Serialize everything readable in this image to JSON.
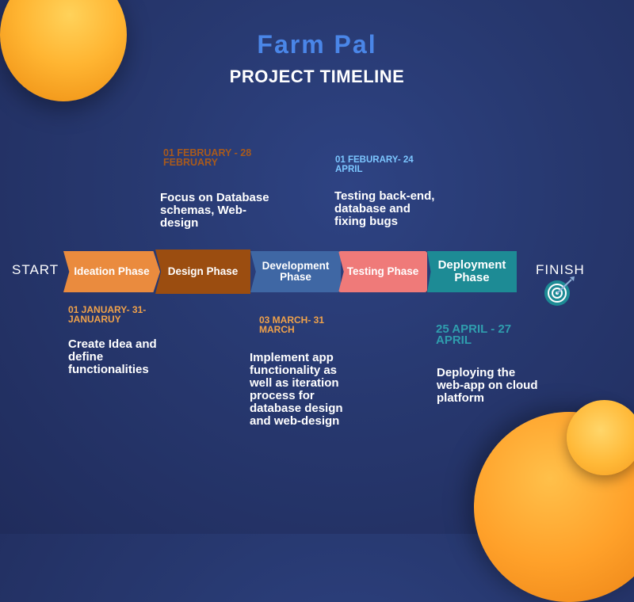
{
  "header": {
    "brand": "Farm Pal",
    "subtitle": "PROJECT TIMELINE"
  },
  "timeline": {
    "start_label": "START",
    "finish_label": "FINISH",
    "finish_icon": "target-icon",
    "phases": [
      {
        "label": "Ideation Phase",
        "date": "01 JANUARY- 31- JANUARUY",
        "description": "Create Idea and define functionalities",
        "color": "#ea8b3e"
      },
      {
        "label": "Design Phase",
        "date": "01 FEBRUARY - 28 FEBRUARY",
        "description": "Focus on Database schemas, Web-design",
        "color": "#9b4d10"
      },
      {
        "label": "Development Phase",
        "date": "03 MARCH- 31 MARCH",
        "description": "Implement app functionality as well as iteration process for database design and web-design",
        "color": "#3f67a4"
      },
      {
        "label": "Testing Phase",
        "date": "01 FEBURARY- 24 APRIL",
        "description": "Testing back-end, database and fixing bugs",
        "color": "#ef7a79"
      },
      {
        "label": "Deployment Phase",
        "date": "25 APRIL - 27 APRIL",
        "description": "Deploying the web-app on cloud platform",
        "color": "#1d8b95"
      }
    ]
  },
  "colors": {
    "background": "#27386f",
    "brand_title": "#4a86e8",
    "accent_orange": "#ffb532"
  }
}
